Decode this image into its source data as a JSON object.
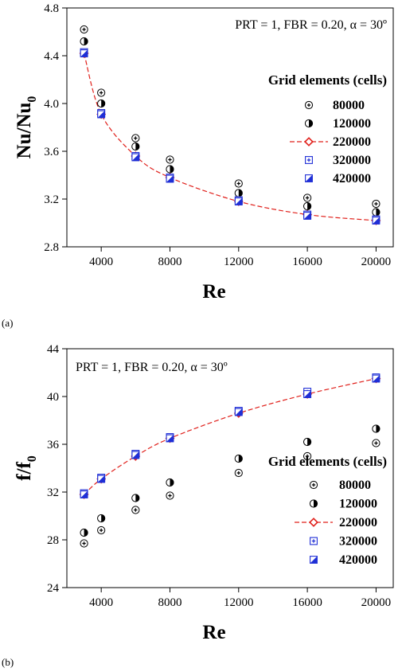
{
  "panel_labels": [
    "(a)",
    "(b)"
  ],
  "legend_title": "Grid elements (cells)",
  "colors": {
    "axis": "#000000",
    "blue": "#1f2fd6",
    "red": "#e0201b"
  },
  "chart_data": [
    {
      "type": "scatter",
      "panel": "(a)",
      "annotation": "PRT = 1, FBR = 0.20, α = 30º",
      "xlabel": "Re",
      "ylabel_main": "Nu/Nu",
      "ylabel_sub": "0",
      "xlim": [
        2000,
        21000
      ],
      "ylim": [
        2.8,
        4.8
      ],
      "xticks": [
        4000,
        8000,
        12000,
        16000,
        20000
      ],
      "yticks": [
        2.8,
        3.2,
        3.6,
        4.0,
        4.4,
        4.8
      ],
      "ytick_labels": [
        "2.8",
        "3.2",
        "3.6",
        "4.0",
        "4.4",
        "4.8"
      ],
      "grid": false,
      "legend_position": "right",
      "x": [
        3000,
        4000,
        6000,
        8000,
        12000,
        16000,
        20000
      ],
      "series": [
        {
          "name": "80000",
          "marker": "circle-plus",
          "values": [
            4.62,
            4.09,
            3.71,
            3.53,
            3.33,
            3.21,
            3.16
          ]
        },
        {
          "name": "120000",
          "marker": "circle-half",
          "values": [
            4.52,
            4.0,
            3.64,
            3.45,
            3.25,
            3.14,
            3.09
          ]
        },
        {
          "name": "220000",
          "marker": "diamond-line",
          "values": [
            4.42,
            3.91,
            3.56,
            3.38,
            3.18,
            3.07,
            3.02
          ]
        },
        {
          "name": "320000",
          "marker": "square-plus",
          "values": [
            4.43,
            3.92,
            3.56,
            3.38,
            3.19,
            3.07,
            3.03
          ]
        },
        {
          "name": "420000",
          "marker": "square-half",
          "values": [
            4.42,
            3.91,
            3.55,
            3.37,
            3.18,
            3.06,
            3.02
          ]
        }
      ]
    },
    {
      "type": "scatter",
      "panel": "(b)",
      "annotation": "PRT = 1, FBR = 0.20, α = 30º",
      "xlabel": "Re",
      "ylabel_main": "f/f",
      "ylabel_sub": "0",
      "xlim": [
        2000,
        21000
      ],
      "ylim": [
        24,
        44
      ],
      "xticks": [
        4000,
        8000,
        12000,
        16000,
        20000
      ],
      "yticks": [
        24,
        28,
        32,
        36,
        40,
        44
      ],
      "ytick_labels": [
        "24",
        "28",
        "32",
        "36",
        "40",
        "44"
      ],
      "grid": false,
      "legend_position": "lower-right",
      "x": [
        3000,
        4000,
        6000,
        8000,
        12000,
        16000,
        20000
      ],
      "series": [
        {
          "name": "80000",
          "marker": "circle-plus",
          "values": [
            27.7,
            28.8,
            30.5,
            31.7,
            33.6,
            35.0,
            36.1
          ]
        },
        {
          "name": "120000",
          "marker": "circle-half",
          "values": [
            28.6,
            29.8,
            31.5,
            32.8,
            34.8,
            36.2,
            37.3
          ]
        },
        {
          "name": "220000",
          "marker": "diamond-line",
          "values": [
            31.8,
            33.1,
            35.0,
            36.5,
            38.6,
            40.2,
            41.5
          ]
        },
        {
          "name": "320000",
          "marker": "square-plus",
          "values": [
            31.9,
            33.2,
            35.2,
            36.6,
            38.8,
            40.4,
            41.6
          ]
        },
        {
          "name": "420000",
          "marker": "square-half",
          "values": [
            31.8,
            33.1,
            35.1,
            36.5,
            38.7,
            40.2,
            41.5
          ]
        }
      ]
    }
  ]
}
